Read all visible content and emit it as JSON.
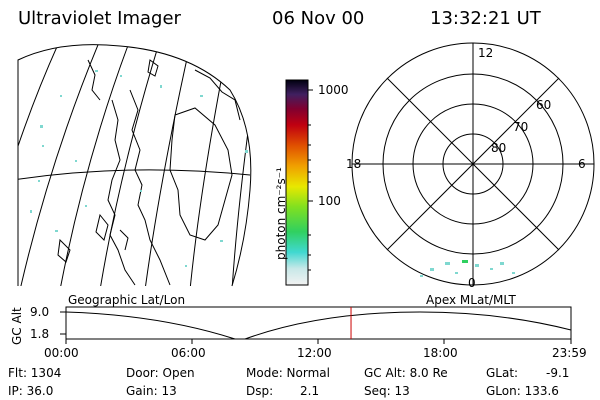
{
  "header": {
    "title": "Ultraviolet Imager",
    "date": "06 Nov 00",
    "time": "13:32:21 UT"
  },
  "colorbar": {
    "unit_label": "photon cm⁻²s⁻¹",
    "ticks": [
      "1000",
      "100"
    ]
  },
  "polar_plot": {
    "mlt_labels": {
      "top": "12",
      "left": "18",
      "right": "6",
      "bottom": "0"
    },
    "lat_labels": [
      "60",
      "70",
      "80"
    ]
  },
  "altitude_strip": {
    "axis_title": "GC Alt",
    "y_ticks": [
      "9.0",
      "1.8"
    ],
    "left_caption": "Geographic Lat/Lon",
    "right_caption": "Apex MLat/MLT",
    "x_ticks": [
      "00:00",
      "06:00",
      "12:00",
      "18:00",
      "23:59"
    ],
    "current_time_fraction": 0.5644
  },
  "footer": {
    "flt": "Flt: 1304",
    "ip": "IP: 36.0",
    "door": "Door: Open",
    "gain": "Gain: 13",
    "mode": "Mode: Normal",
    "dsp": "Dsp:",
    "dsp_value": "2.1",
    "gc_alt": "GC Alt: 8.0 Re",
    "seq": "Seq: 13",
    "glat": "GLat:",
    "glat_value": "-9.1",
    "glon": "GLon: 133.6"
  },
  "colors": {
    "foreground": "#000000",
    "marker": "#cc0000",
    "speckle": "#7fd8d0"
  }
}
